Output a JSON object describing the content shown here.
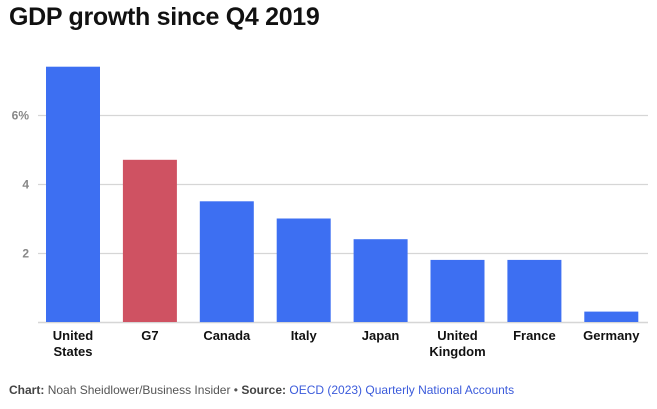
{
  "chart_data": {
    "type": "bar",
    "title": "GDP growth since Q4 2019",
    "xlabel": "",
    "ylabel": "",
    "categories": [
      [
        "United",
        "States"
      ],
      [
        "G7"
      ],
      [
        "Canada"
      ],
      [
        "Italy"
      ],
      [
        "Japan"
      ],
      [
        "United",
        "Kingdom"
      ],
      [
        "France"
      ],
      [
        "Germany"
      ]
    ],
    "category_names": [
      "United States",
      "G7",
      "Canada",
      "Italy",
      "Japan",
      "United Kingdom",
      "France",
      "Germany"
    ],
    "values": [
      7.4,
      4.7,
      3.5,
      3.0,
      2.4,
      1.8,
      1.8,
      0.3
    ],
    "highlight": "G7",
    "colors": {
      "default": "#3d6ff2",
      "highlight": "#cf5262",
      "grid": "#d6d6d6",
      "tick_text": "#888888"
    },
    "ylim": [
      0,
      7.6
    ],
    "yticks": [
      2,
      4,
      6
    ],
    "ytick_labels": [
      "2",
      "4",
      "6%"
    ],
    "grid": true,
    "unit": "%"
  },
  "footer": {
    "chart_label": "Chart:",
    "chart_credit": "Noah Sheidlower/Business Insider",
    "separator": " • ",
    "source_label": "Source:",
    "source_text": "OECD (2023) Quarterly National Accounts"
  }
}
